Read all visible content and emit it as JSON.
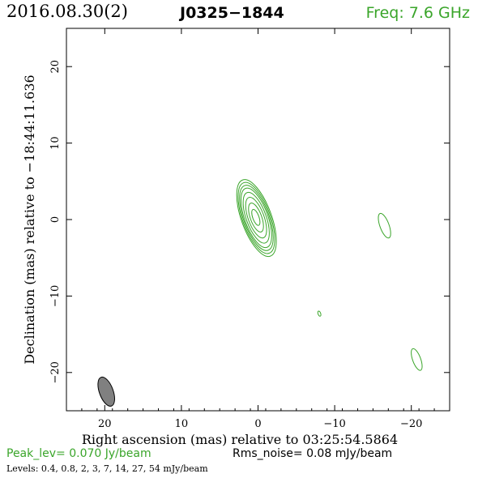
{
  "header": {
    "date": "2016.08.30(2)",
    "source": "J0325−1844",
    "freq": "Freq: 7.6 GHz"
  },
  "footer": {
    "peak": "Peak_lev=  0.070 Jy/beam",
    "rms": "Rms_noise= 0.08 mJy/beam",
    "levels": "Levels: 0.4, 0.8,   2,   3,   7,  14,  27,  54 mJy/beam"
  },
  "colors": {
    "contour": "#3aa52a",
    "beam_fill": "#808080",
    "axes": "#000000"
  },
  "chart_data": {
    "type": "contour",
    "xlabel": "Right ascension (mas) relative to 03:25:54.5864",
    "ylabel": "Declination (mas) relative to −18:44:11.636",
    "xlim": [
      25,
      -25
    ],
    "ylim": [
      -25,
      25
    ],
    "xticks": [
      20,
      10,
      0,
      -10,
      -20
    ],
    "yticks": [
      -20,
      -10,
      0,
      10,
      20
    ],
    "levels_mJy": [
      0.4,
      0.8,
      2,
      3,
      7,
      14,
      27,
      54
    ],
    "peak_Jy_per_beam": 0.07,
    "rms_mJy_per_beam": 0.08,
    "main_component": {
      "x": 0.2,
      "y": 0.2,
      "semi_major": [
        5.3,
        4.9,
        4.5,
        4.1,
        3.5,
        2.8,
        2.0,
        1.1
      ],
      "axis_ratio": 0.37,
      "pa_deg": 20
    },
    "minor_components": [
      {
        "x": -16.5,
        "y": -0.8,
        "semi_major": 1.7,
        "axis_ratio": 0.35,
        "pa_deg": 20
      },
      {
        "x": -20.7,
        "y": -18.3,
        "semi_major": 1.5,
        "axis_ratio": 0.35,
        "pa_deg": 20
      },
      {
        "x": -8.0,
        "y": -12.3,
        "semi_major": 0.35,
        "axis_ratio": 0.5,
        "pa_deg": 20
      }
    ],
    "beam": {
      "x": 19.8,
      "y": -22.5,
      "semi_major": 2.0,
      "semi_minor": 0.9,
      "pa_deg": 20
    }
  }
}
